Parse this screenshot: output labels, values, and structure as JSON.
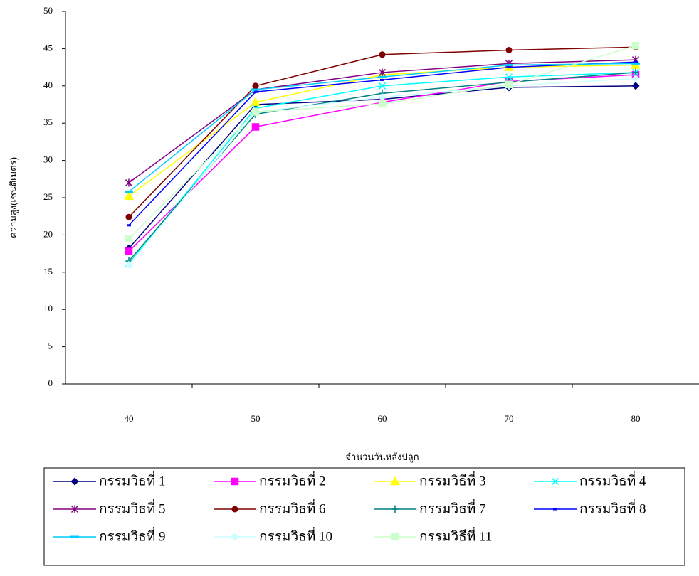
{
  "chart_data": {
    "type": "line",
    "y_label": "ความสูง(เซนติเมตร)",
    "x_label": "จำนวนวันหลังปลูก",
    "categories": [
      "40",
      "50",
      "60",
      "70",
      "80"
    ],
    "ylim": [
      0,
      50
    ],
    "yticks": [
      0,
      5,
      10,
      15,
      20,
      25,
      30,
      35,
      40,
      45,
      50
    ],
    "series": [
      {
        "name": "กรรมวิธที่ 1",
        "color": "#000080",
        "marker": "diamond",
        "values": [
          18.2,
          37.5,
          38.2,
          39.8,
          40.0
        ]
      },
      {
        "name": "กรรมวิธที่ 2",
        "color": "#ff00ff",
        "marker": "square",
        "values": [
          17.8,
          34.5,
          37.8,
          40.6,
          41.5
        ]
      },
      {
        "name": "กรรมวิธีที่ 3",
        "color": "#ffff00",
        "marker": "triangle",
        "values": [
          25.2,
          37.8,
          41.5,
          42.5,
          42.8
        ]
      },
      {
        "name": "กรรมวิธที่ 4",
        "color": "#00ffff",
        "marker": "x",
        "values": [
          16.2,
          37.0,
          40.0,
          41.2,
          41.8
        ]
      },
      {
        "name": "กรรมวิธที่ 5",
        "color": "#800080",
        "marker": "star",
        "values": [
          27.0,
          39.5,
          41.8,
          43.0,
          43.5
        ]
      },
      {
        "name": "กรรมวิธที่ 6",
        "color": "#800000",
        "marker": "circle",
        "values": [
          22.4,
          40.0,
          44.2,
          44.8,
          45.2
        ]
      },
      {
        "name": "กรรมวิธที่ 7",
        "color": "#008080",
        "marker": "plus",
        "values": [
          16.5,
          36.2,
          39.0,
          40.5,
          41.8
        ]
      },
      {
        "name": "กรรมวิธที่ 8",
        "color": "#0000ff",
        "marker": "dash",
        "values": [
          21.3,
          39.2,
          40.8,
          42.5,
          43.2
        ]
      },
      {
        "name": "กรรมวิธที่ 9",
        "color": "#00ccff",
        "marker": "bar",
        "values": [
          25.8,
          39.5,
          41.2,
          42.8,
          43.0
        ]
      },
      {
        "name": "กรรมวิธที่ 10",
        "color": "#ccffff",
        "marker": "diamond",
        "values": [
          16.0,
          36.5,
          38.5,
          40.0,
          41.0
        ]
      },
      {
        "name": "กรรมวิธีที่ 11",
        "color": "#ccffcc",
        "marker": "square",
        "values": [
          19.5,
          36.5,
          37.6,
          40.2,
          45.4
        ]
      }
    ]
  }
}
